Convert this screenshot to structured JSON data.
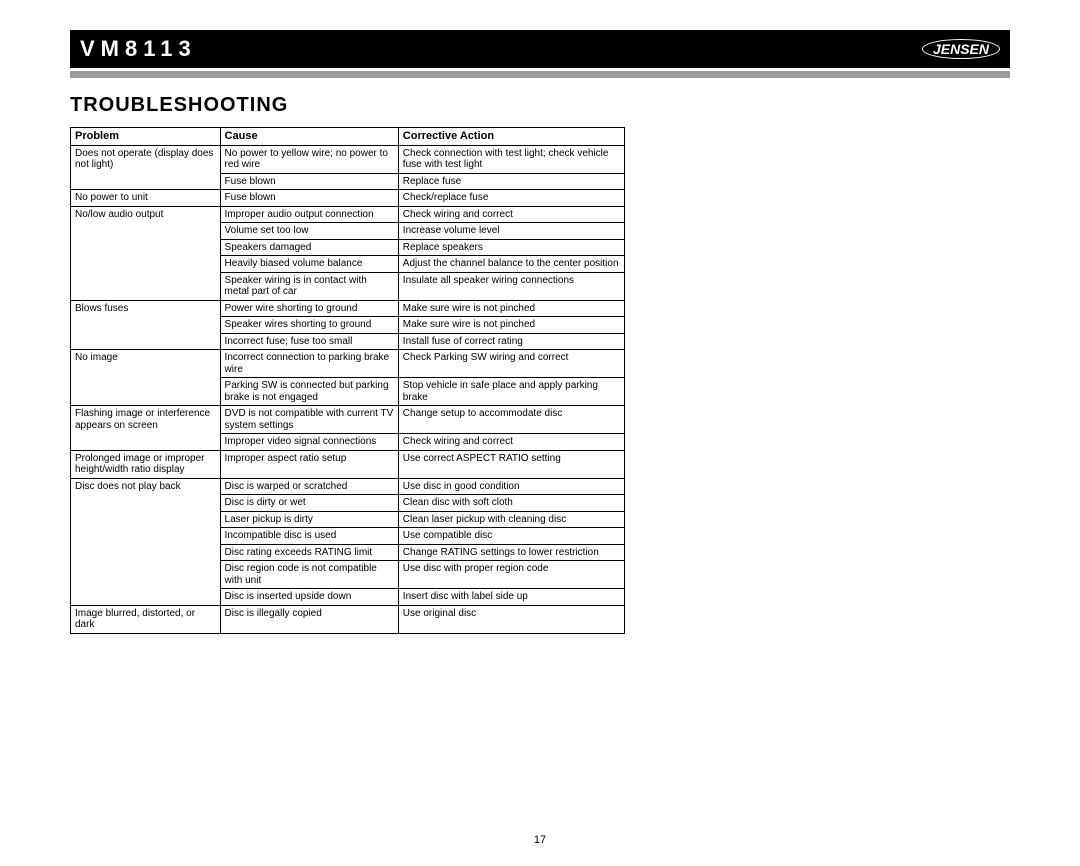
{
  "header": {
    "model": "VM8113",
    "brand": "JENSEN"
  },
  "section_title": "TROUBLESHOOTING",
  "columns": [
    "Problem",
    "Cause",
    "Corrective Action"
  ],
  "rows": [
    {
      "p": "Does not operate (display does not light)",
      "c": "No power to yellow wire; no power to red wire",
      "a": "Check connection with test light; check vehicle fuse with test light",
      "pr": 2
    },
    {
      "p": "",
      "c": "Fuse blown",
      "a": "Replace fuse"
    },
    {
      "p": "No power to unit",
      "c": "Fuse blown",
      "a": "Check/replace fuse"
    },
    {
      "p": "No/low audio output",
      "c": "Improper audio output connection",
      "a": "Check wiring and correct",
      "pr": 5
    },
    {
      "p": "",
      "c": "Volume set too low",
      "a": "Increase volume level"
    },
    {
      "p": "",
      "c": "Speakers damaged",
      "a": "Replace speakers"
    },
    {
      "p": "",
      "c": "Heavily biased volume balance",
      "a": "Adjust the channel balance to the center position"
    },
    {
      "p": "",
      "c": "Speaker wiring is in contact with metal part of car",
      "a": "Insulate all speaker wiring connections"
    },
    {
      "p": "Blows fuses",
      "c": "Power wire shorting to ground",
      "a": "Make sure wire is not pinched",
      "pr": 3
    },
    {
      "p": "",
      "c": "Speaker wires shorting to ground",
      "a": "Make sure wire is not pinched"
    },
    {
      "p": "",
      "c": "Incorrect fuse; fuse too small",
      "a": "Install fuse of correct rating"
    },
    {
      "p": "No image",
      "c": "Incorrect connection to parking brake wire",
      "a": "Check Parking SW wiring and correct",
      "pr": 2
    },
    {
      "p": "",
      "c": "Parking SW is connected but parking brake is not engaged",
      "a": "Stop vehicle in safe place and apply parking brake"
    },
    {
      "p": "Flashing image or interference appears on screen",
      "c": "DVD is not compatible with current TV system settings",
      "a": "Change setup to accommodate disc",
      "pr": 2
    },
    {
      "p": "",
      "c": "Improper video signal connections",
      "a": "Check wiring and correct"
    },
    {
      "p": "Prolonged image or improper height/width ratio display",
      "c": "Improper aspect ratio setup",
      "a": "Use correct ASPECT RATIO setting"
    },
    {
      "p": "Disc does not play back",
      "c": "Disc is warped or scratched",
      "a": "Use disc in good condition",
      "pr": 7
    },
    {
      "p": "",
      "c": "Disc is dirty or wet",
      "a": "Clean disc with soft cloth"
    },
    {
      "p": "",
      "c": "Laser pickup is dirty",
      "a": "Clean laser pickup with cleaning disc"
    },
    {
      "p": "",
      "c": "Incompatible disc is used",
      "a": "Use compatible disc"
    },
    {
      "p": "",
      "c": "Disc rating exceeds RATING limit",
      "a": "Change RATING settings to lower restriction"
    },
    {
      "p": "",
      "c": "Disc region code is not compatible with unit",
      "a": "Use disc with proper region code"
    },
    {
      "p": "",
      "c": "Disc is inserted upside down",
      "a": "Insert disc with label side up"
    },
    {
      "p": "Image blurred, distorted, or dark",
      "c": "Disc is illegally copied",
      "a": "Use original disc"
    }
  ],
  "page_number": "17"
}
